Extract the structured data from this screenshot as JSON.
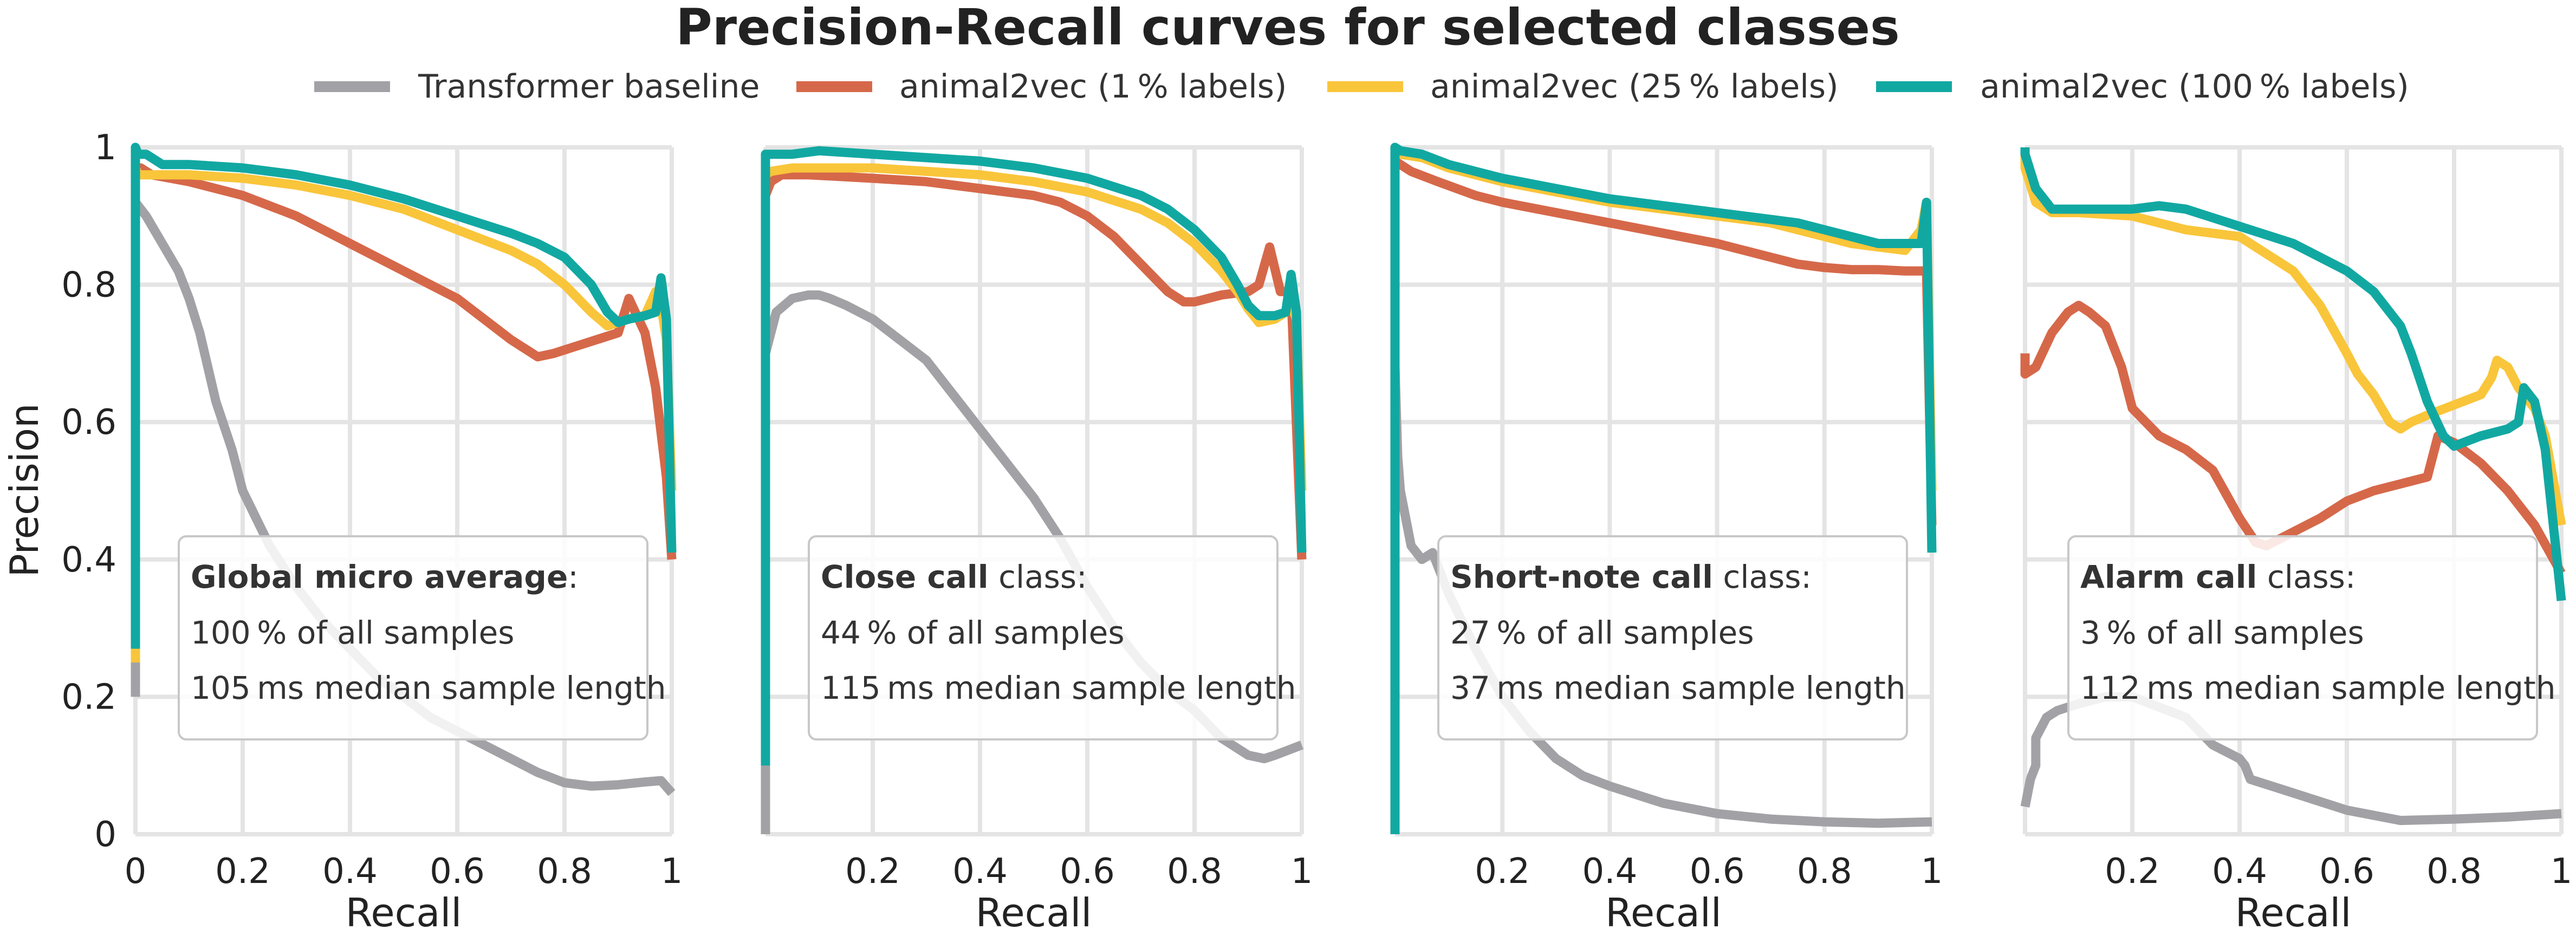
{
  "chart_data": {
    "type": "line",
    "title": "Precision-Recall curves for selected classes",
    "xlabel": "Recall",
    "ylabel": "Precision",
    "xlim": [
      0,
      1
    ],
    "ylim": [
      0,
      1
    ],
    "grid": true,
    "legend_position": "top",
    "colors": {
      "Transformer baseline": "#a2a2a6",
      "animal2vec (1 % labels)": "#d6684a",
      "animal2vec (25 % labels)": "#f9c53a",
      "animal2vec (100 % labels)": "#12a8a2"
    },
    "legend": [
      "Transformer baseline",
      "animal2vec (1 % labels)",
      "animal2vec (25 % labels)",
      "animal2vec (100 % labels)"
    ],
    "x_ticks_first": [
      "0",
      "0.2",
      "0.4",
      "0.6",
      "0.8",
      "1"
    ],
    "x_ticks_other": [
      "0.2",
      "0.4",
      "0.6",
      "0.8",
      "1"
    ],
    "y_ticks": [
      "0",
      "0.2",
      "0.4",
      "0.6",
      "0.8",
      "1"
    ],
    "panels": [
      {
        "box": {
          "bold": "Global micro average",
          "rest": ":",
          "line2": "100 % of all samples",
          "line3_bold": "105 ms",
          "line3_rest": " median sample length"
        },
        "series": [
          {
            "name": "Transformer baseline",
            "x": [
              0.0,
              0.0,
              0.02,
              0.05,
              0.08,
              0.1,
              0.12,
              0.15,
              0.18,
              0.2,
              0.25,
              0.3,
              0.35,
              0.4,
              0.45,
              0.5,
              0.55,
              0.6,
              0.65,
              0.7,
              0.75,
              0.8,
              0.85,
              0.9,
              0.95,
              0.98,
              1.0
            ],
            "y": [
              0.2,
              0.92,
              0.9,
              0.86,
              0.82,
              0.78,
              0.73,
              0.63,
              0.56,
              0.5,
              0.42,
              0.36,
              0.31,
              0.27,
              0.23,
              0.2,
              0.17,
              0.15,
              0.13,
              0.11,
              0.09,
              0.075,
              0.07,
              0.072,
              0.076,
              0.078,
              0.06
            ]
          },
          {
            "name": "animal2vec (1 % labels)",
            "x": [
              0.0,
              0.0,
              0.01,
              0.03,
              0.1,
              0.2,
              0.3,
              0.4,
              0.5,
              0.6,
              0.65,
              0.7,
              0.75,
              0.78,
              0.82,
              0.86,
              0.9,
              0.92,
              0.95,
              0.97,
              0.99,
              1.0
            ],
            "y": [
              0.8,
              0.96,
              0.97,
              0.96,
              0.95,
              0.93,
              0.9,
              0.86,
              0.82,
              0.78,
              0.75,
              0.72,
              0.695,
              0.7,
              0.71,
              0.72,
              0.73,
              0.78,
              0.73,
              0.65,
              0.52,
              0.4
            ]
          },
          {
            "name": "animal2vec (25 % labels)",
            "x": [
              0.0,
              0.0,
              0.005,
              0.02,
              0.1,
              0.2,
              0.3,
              0.4,
              0.5,
              0.6,
              0.7,
              0.75,
              0.8,
              0.85,
              0.88,
              0.9,
              0.92,
              0.95,
              0.97,
              0.98,
              0.99,
              1.0
            ],
            "y": [
              0.25,
              0.97,
              0.96,
              0.96,
              0.96,
              0.955,
              0.945,
              0.93,
              0.91,
              0.88,
              0.85,
              0.83,
              0.8,
              0.76,
              0.74,
              0.745,
              0.75,
              0.755,
              0.79,
              0.77,
              0.72,
              0.5
            ]
          },
          {
            "name": "animal2vec (100 % labels)",
            "x": [
              0.0,
              0.0,
              0.005,
              0.02,
              0.05,
              0.1,
              0.2,
              0.3,
              0.4,
              0.5,
              0.6,
              0.7,
              0.75,
              0.8,
              0.85,
              0.88,
              0.9,
              0.92,
              0.95,
              0.97,
              0.98,
              0.99,
              1.0
            ],
            "y": [
              0.27,
              1.0,
              0.99,
              0.99,
              0.975,
              0.975,
              0.97,
              0.96,
              0.945,
              0.925,
              0.9,
              0.875,
              0.86,
              0.84,
              0.8,
              0.76,
              0.745,
              0.75,
              0.755,
              0.76,
              0.81,
              0.75,
              0.41
            ]
          }
        ]
      },
      {
        "box": {
          "bold": "Close call",
          "rest": " class:",
          "line2": "44 % of all samples",
          "line3_bold": "115 ms",
          "line3_rest": " median sample length"
        },
        "series": [
          {
            "name": "Transformer baseline",
            "x": [
              0.0,
              0.0,
              0.02,
              0.05,
              0.08,
              0.1,
              0.12,
              0.15,
              0.2,
              0.25,
              0.3,
              0.35,
              0.4,
              0.45,
              0.5,
              0.55,
              0.6,
              0.65,
              0.7,
              0.75,
              0.8,
              0.85,
              0.9,
              0.93,
              0.95,
              1.0
            ],
            "y": [
              0.0,
              0.7,
              0.76,
              0.78,
              0.785,
              0.785,
              0.78,
              0.77,
              0.75,
              0.72,
              0.69,
              0.64,
              0.59,
              0.54,
              0.49,
              0.43,
              0.36,
              0.3,
              0.25,
              0.21,
              0.18,
              0.14,
              0.115,
              0.11,
              0.115,
              0.13
            ]
          },
          {
            "name": "animal2vec (1 % labels)",
            "x": [
              0.0,
              0.0,
              0.01,
              0.03,
              0.08,
              0.2,
              0.3,
              0.4,
              0.5,
              0.55,
              0.6,
              0.65,
              0.7,
              0.75,
              0.78,
              0.8,
              0.85,
              0.9,
              0.92,
              0.94,
              0.96,
              0.98,
              1.0
            ],
            "y": [
              0.9,
              0.93,
              0.95,
              0.96,
              0.96,
              0.955,
              0.95,
              0.94,
              0.93,
              0.92,
              0.9,
              0.87,
              0.83,
              0.79,
              0.775,
              0.775,
              0.785,
              0.79,
              0.8,
              0.855,
              0.79,
              0.79,
              0.4
            ]
          },
          {
            "name": "animal2vec (25 % labels)",
            "x": [
              0.0,
              0.0,
              0.01,
              0.05,
              0.2,
              0.3,
              0.4,
              0.5,
              0.6,
              0.7,
              0.75,
              0.8,
              0.85,
              0.88,
              0.9,
              0.92,
              0.95,
              0.97,
              0.98,
              0.99,
              1.0
            ],
            "y": [
              0.95,
              0.96,
              0.965,
              0.97,
              0.97,
              0.965,
              0.96,
              0.95,
              0.935,
              0.91,
              0.89,
              0.86,
              0.82,
              0.79,
              0.765,
              0.745,
              0.75,
              0.76,
              0.77,
              0.75,
              0.5
            ]
          },
          {
            "name": "animal2vec (100 % labels)",
            "x": [
              0.0,
              0.0,
              0.01,
              0.05,
              0.1,
              0.2,
              0.3,
              0.4,
              0.5,
              0.6,
              0.7,
              0.75,
              0.8,
              0.85,
              0.88,
              0.9,
              0.92,
              0.95,
              0.97,
              0.98,
              0.99,
              1.0
            ],
            "y": [
              0.1,
              0.99,
              0.99,
              0.99,
              0.995,
              0.99,
              0.985,
              0.98,
              0.97,
              0.955,
              0.93,
              0.91,
              0.88,
              0.84,
              0.8,
              0.77,
              0.755,
              0.755,
              0.76,
              0.815,
              0.76,
              0.41
            ]
          }
        ]
      },
      {
        "box": {
          "bold": "Short-note call",
          "rest": " class:",
          "line2": "27 % of all samples",
          "line3_bold": "37 ms",
          "line3_rest": " median sample length"
        },
        "series": [
          {
            "name": "Transformer baseline",
            "x": [
              0.0,
              0.005,
              0.01,
              0.02,
              0.03,
              0.05,
              0.07,
              0.08,
              0.1,
              0.15,
              0.2,
              0.25,
              0.3,
              0.35,
              0.4,
              0.5,
              0.6,
              0.7,
              0.8,
              0.9,
              1.0
            ],
            "y": [
              0.68,
              0.55,
              0.5,
              0.46,
              0.42,
              0.4,
              0.41,
              0.39,
              0.35,
              0.27,
              0.2,
              0.15,
              0.11,
              0.085,
              0.07,
              0.045,
              0.03,
              0.022,
              0.018,
              0.016,
              0.018
            ]
          },
          {
            "name": "animal2vec (1 % labels)",
            "x": [
              0.0,
              0.0,
              0.01,
              0.03,
              0.08,
              0.15,
              0.2,
              0.3,
              0.4,
              0.5,
              0.6,
              0.65,
              0.7,
              0.75,
              0.8,
              0.85,
              0.9,
              0.95,
              0.98,
              0.99,
              1.0
            ],
            "y": [
              0.95,
              0.98,
              0.975,
              0.965,
              0.95,
              0.93,
              0.92,
              0.905,
              0.89,
              0.875,
              0.86,
              0.85,
              0.84,
              0.83,
              0.825,
              0.822,
              0.822,
              0.82,
              0.82,
              0.82,
              0.45
            ]
          },
          {
            "name": "animal2vec (25 % labels)",
            "x": [
              0.0,
              0.0,
              0.01,
              0.05,
              0.1,
              0.2,
              0.3,
              0.4,
              0.5,
              0.6,
              0.7,
              0.8,
              0.85,
              0.9,
              0.95,
              0.98,
              0.99,
              1.0
            ],
            "y": [
              0.98,
              0.99,
              0.99,
              0.985,
              0.97,
              0.95,
              0.935,
              0.92,
              0.91,
              0.9,
              0.89,
              0.87,
              0.86,
              0.855,
              0.85,
              0.88,
              0.92,
              0.5
            ]
          },
          {
            "name": "animal2vec (100 % labels)",
            "x": [
              0.0,
              0.0,
              0.01,
              0.05,
              0.1,
              0.2,
              0.3,
              0.4,
              0.5,
              0.6,
              0.7,
              0.75,
              0.8,
              0.85,
              0.9,
              0.95,
              0.98,
              0.99,
              1.0
            ],
            "y": [
              0.0,
              1.0,
              0.995,
              0.99,
              0.975,
              0.955,
              0.94,
              0.925,
              0.915,
              0.905,
              0.895,
              0.89,
              0.88,
              0.87,
              0.86,
              0.86,
              0.86,
              0.92,
              0.41
            ]
          }
        ]
      },
      {
        "box": {
          "bold": "Alarm call",
          "rest": " class:",
          "line2": "3 % of all samples",
          "line3_bold": "112 ms",
          "line3_rest": " median sample length"
        },
        "series": [
          {
            "name": "Transformer baseline",
            "x": [
              0.0,
              0.01,
              0.02,
              0.02,
              0.04,
              0.06,
              0.1,
              0.15,
              0.2,
              0.3,
              0.35,
              0.4,
              0.41,
              0.42,
              0.5,
              0.6,
              0.7,
              0.8,
              0.9,
              1.0
            ],
            "y": [
              0.04,
              0.08,
              0.1,
              0.14,
              0.17,
              0.18,
              0.19,
              0.2,
              0.2,
              0.17,
              0.13,
              0.11,
              0.1,
              0.08,
              0.06,
              0.035,
              0.02,
              0.022,
              0.025,
              0.03
            ]
          },
          {
            "name": "animal2vec (1 % labels)",
            "x": [
              0.0,
              0.0,
              0.02,
              0.05,
              0.08,
              0.1,
              0.12,
              0.15,
              0.18,
              0.2,
              0.25,
              0.3,
              0.35,
              0.4,
              0.43,
              0.45,
              0.5,
              0.55,
              0.6,
              0.65,
              0.7,
              0.75,
              0.77,
              0.8,
              0.85,
              0.9,
              0.95,
              1.0
            ],
            "y": [
              0.7,
              0.67,
              0.68,
              0.73,
              0.76,
              0.77,
              0.76,
              0.74,
              0.68,
              0.62,
              0.58,
              0.56,
              0.53,
              0.46,
              0.425,
              0.42,
              0.44,
              0.46,
              0.485,
              0.5,
              0.51,
              0.52,
              0.58,
              0.57,
              0.54,
              0.5,
              0.45,
              0.38
            ]
          },
          {
            "name": "animal2vec (25 % labels)",
            "x": [
              0.0,
              0.0,
              0.02,
              0.05,
              0.1,
              0.2,
              0.3,
              0.4,
              0.5,
              0.55,
              0.6,
              0.62,
              0.65,
              0.68,
              0.7,
              0.72,
              0.75,
              0.8,
              0.85,
              0.87,
              0.88,
              0.9,
              0.92,
              0.95,
              0.97,
              1.0
            ],
            "y": [
              1.0,
              0.97,
              0.92,
              0.905,
              0.905,
              0.9,
              0.88,
              0.87,
              0.82,
              0.77,
              0.7,
              0.67,
              0.64,
              0.6,
              0.59,
              0.6,
              0.61,
              0.625,
              0.64,
              0.665,
              0.69,
              0.68,
              0.65,
              0.62,
              0.58,
              0.45
            ]
          },
          {
            "name": "animal2vec (100 % labels)",
            "x": [
              0.0,
              0.0,
              0.02,
              0.05,
              0.1,
              0.2,
              0.25,
              0.3,
              0.4,
              0.5,
              0.6,
              0.65,
              0.7,
              0.72,
              0.75,
              0.78,
              0.8,
              0.85,
              0.9,
              0.92,
              0.93,
              0.95,
              0.97,
              1.0
            ],
            "y": [
              1.0,
              0.99,
              0.94,
              0.91,
              0.91,
              0.91,
              0.915,
              0.91,
              0.885,
              0.86,
              0.82,
              0.79,
              0.74,
              0.7,
              0.63,
              0.58,
              0.565,
              0.58,
              0.59,
              0.6,
              0.65,
              0.63,
              0.56,
              0.34
            ]
          }
        ]
      }
    ]
  }
}
